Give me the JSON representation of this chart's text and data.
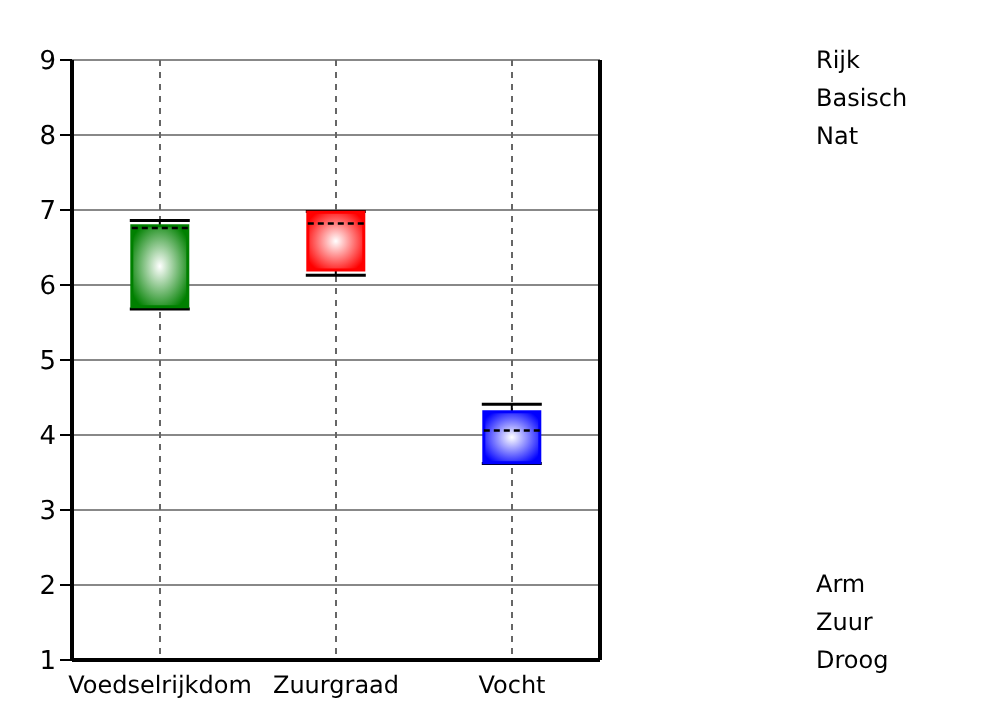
{
  "chart_data": {
    "type": "box",
    "categories": [
      "Voedselrijkdom",
      "Zuurgraad",
      "Vocht"
    ],
    "series": [
      {
        "color": "#008000",
        "boxes": [
          {
            "low": 5.68,
            "q1": 5.71,
            "median": 6.76,
            "q3": 6.79,
            "high": 6.86
          },
          null,
          null
        ]
      },
      {
        "color": "#ff0000",
        "boxes": [
          null,
          {
            "low": 6.13,
            "q1": 6.2,
            "median": 6.82,
            "q3": 6.97,
            "high": 6.98
          },
          null
        ]
      },
      {
        "color": "#0000ff",
        "boxes": [
          null,
          null,
          {
            "low": 3.62,
            "q1": 3.63,
            "median": 4.06,
            "q3": 4.31,
            "high": 4.41
          }
        ]
      }
    ],
    "ylim": [
      1,
      9
    ],
    "yticks": [
      1,
      2,
      3,
      4,
      5,
      6,
      7,
      8,
      9
    ],
    "grid": true,
    "annotations": [
      "Rijk",
      "Basisch",
      "Nat",
      "Arm",
      "Zuur",
      "Droog"
    ]
  }
}
